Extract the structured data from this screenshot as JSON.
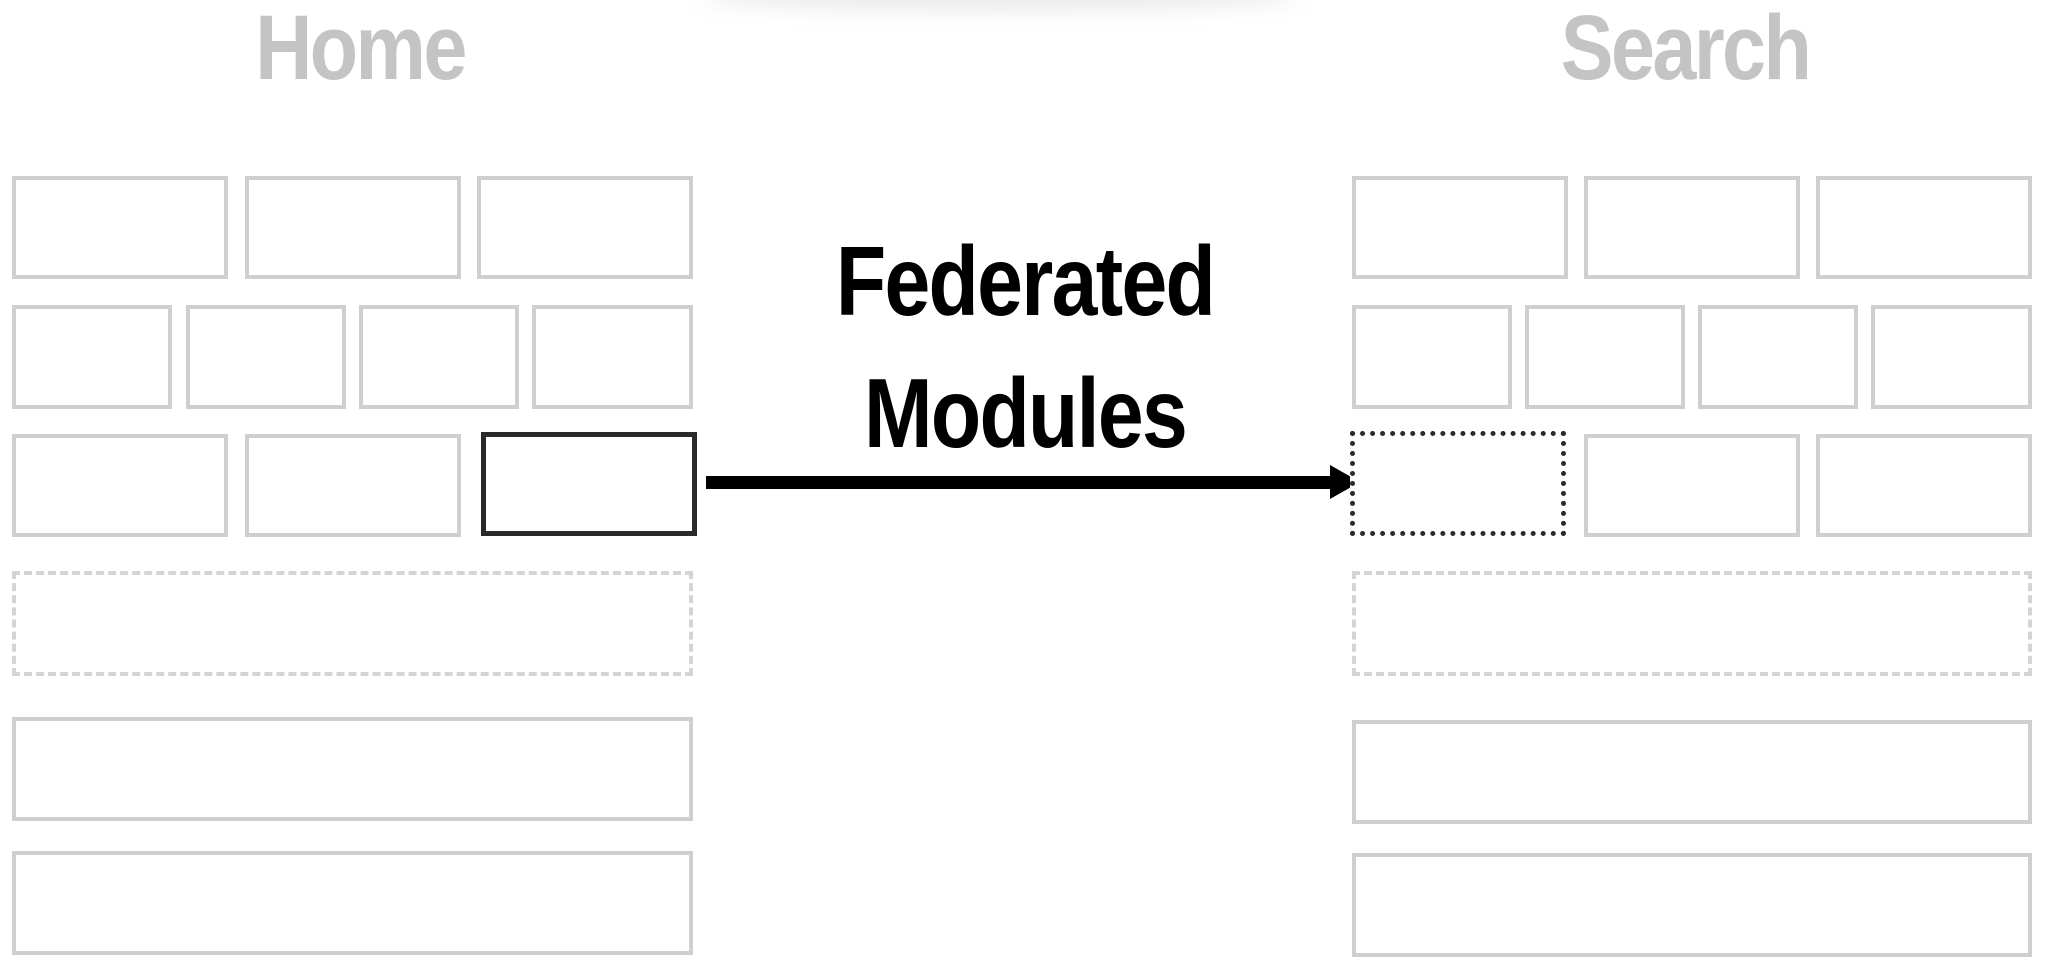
{
  "home": {
    "title": "Home"
  },
  "search": {
    "title": "Search"
  },
  "arrow_label": {
    "line1": "Federated",
    "line2": "Modules"
  },
  "colors": {
    "muted_title": "#c4c4c4",
    "box_border": "#cfcfcf",
    "highlight_border": "#2a2a2a",
    "arrow": "#000000"
  }
}
